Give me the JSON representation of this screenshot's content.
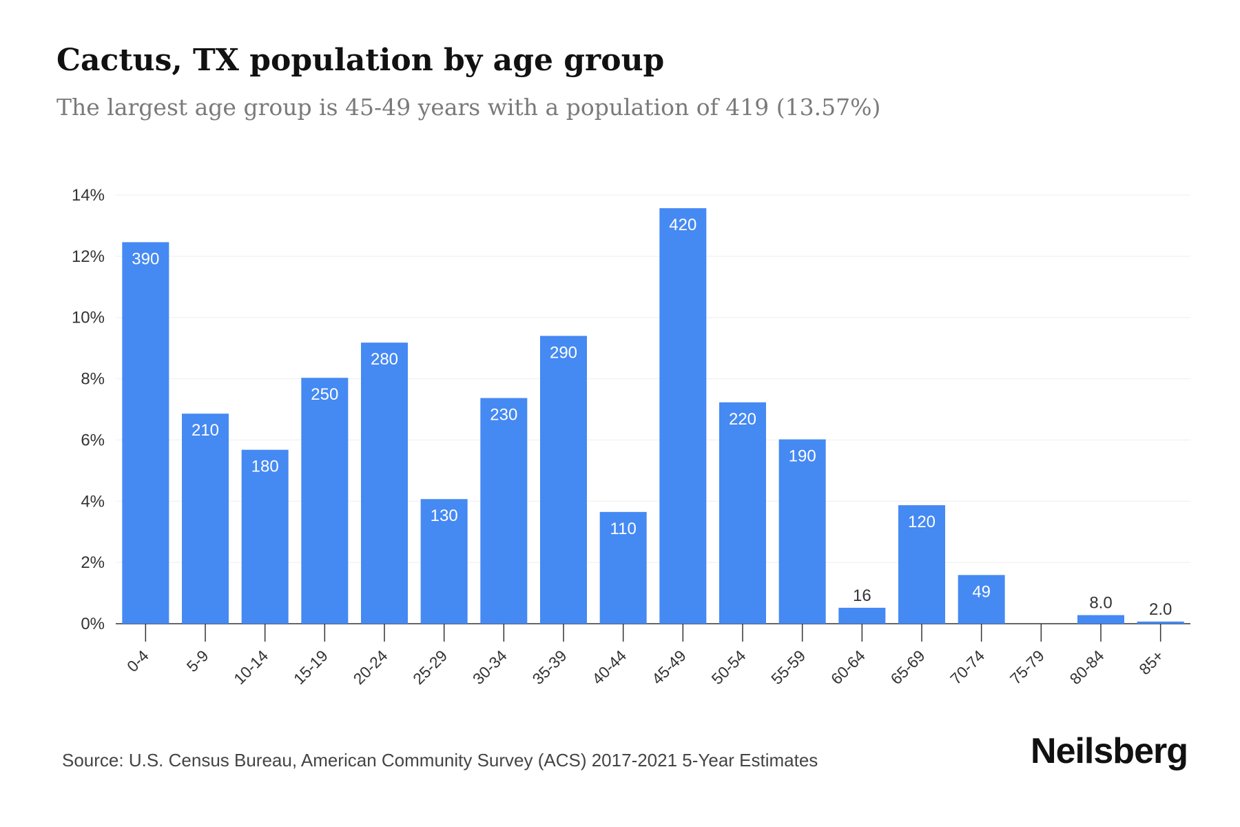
{
  "header": {
    "title": "Cactus, TX population by age group",
    "subtitle": "The largest age group is 45-49 years with a population of 419 (13.57%)"
  },
  "footer": {
    "source": "Source: U.S. Census Bureau, American Community Survey (ACS) 2017-2021 5-Year Estimates",
    "brand": "Neilsberg"
  },
  "colors": {
    "bar": "#4589f3",
    "label_inside": "#ffffff",
    "label_outside": "#333333",
    "grid": "#eeeeee",
    "axis": "#333333"
  },
  "chart_data": {
    "type": "bar",
    "categories": [
      "0-4",
      "5-9",
      "10-14",
      "15-19",
      "20-24",
      "25-29",
      "30-34",
      "35-39",
      "40-44",
      "45-49",
      "50-54",
      "55-59",
      "60-64",
      "65-69",
      "70-74",
      "75-79",
      "80-84",
      "85+"
    ],
    "values": [
      12.46,
      6.86,
      5.68,
      8.03,
      9.18,
      4.07,
      7.37,
      9.4,
      3.65,
      13.57,
      7.23,
      6.02,
      0.52,
      3.87,
      1.59,
      0,
      0.28,
      0.07
    ],
    "data_labels": [
      "390",
      "210",
      "180",
      "250",
      "280",
      "130",
      "230",
      "290",
      "110",
      "420",
      "220",
      "190",
      "16",
      "120",
      "49",
      "",
      "8.0",
      "2.0"
    ],
    "labels_outside": [
      false,
      false,
      false,
      false,
      false,
      false,
      false,
      false,
      false,
      false,
      false,
      false,
      true,
      false,
      false,
      false,
      true,
      true
    ],
    "y_ticks": [
      0,
      2,
      4,
      6,
      8,
      10,
      12,
      14
    ],
    "y_tick_labels": [
      "0%",
      "2%",
      "4%",
      "6%",
      "8%",
      "10%",
      "12%",
      "14%"
    ],
    "ylim": [
      0,
      14
    ],
    "grid": true,
    "legend": "none"
  }
}
